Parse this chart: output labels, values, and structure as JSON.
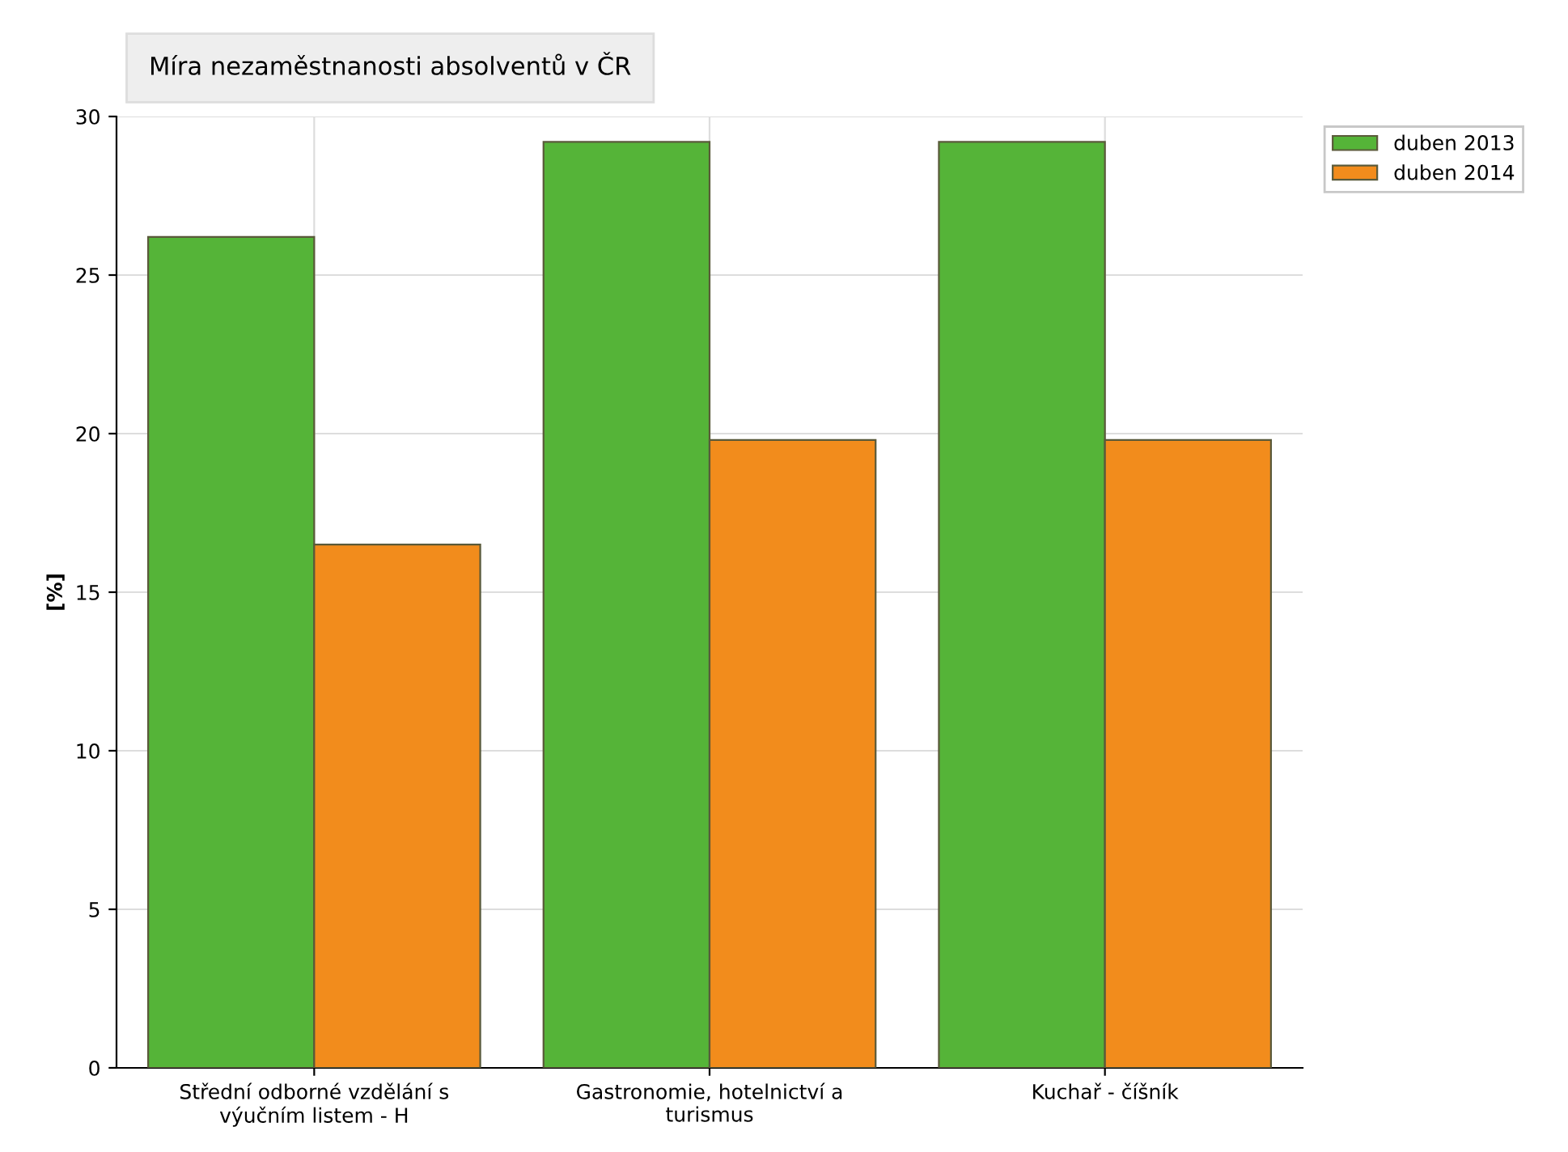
{
  "chart_data": {
    "type": "bar",
    "title": "Míra nezaměstnanosti absolventů v ČR",
    "ylabel": "[%]",
    "categories": [
      "Střední odborné vzdělání s\nvýučním listem - H",
      "Gastronomie, hotelnictví a\nturismus",
      "Kuchař - číšník"
    ],
    "series": [
      {
        "name": "duben 2013",
        "color": "#55b438",
        "values": [
          26.2,
          29.2,
          29.2
        ]
      },
      {
        "name": "duben 2014",
        "color": "#f28c1c",
        "values": [
          16.5,
          19.8,
          19.8
        ]
      }
    ],
    "ylim": [
      0,
      30
    ],
    "yticks": [
      0,
      5,
      10,
      15,
      20,
      25,
      30
    ],
    "grid": true,
    "legend": "top right"
  }
}
